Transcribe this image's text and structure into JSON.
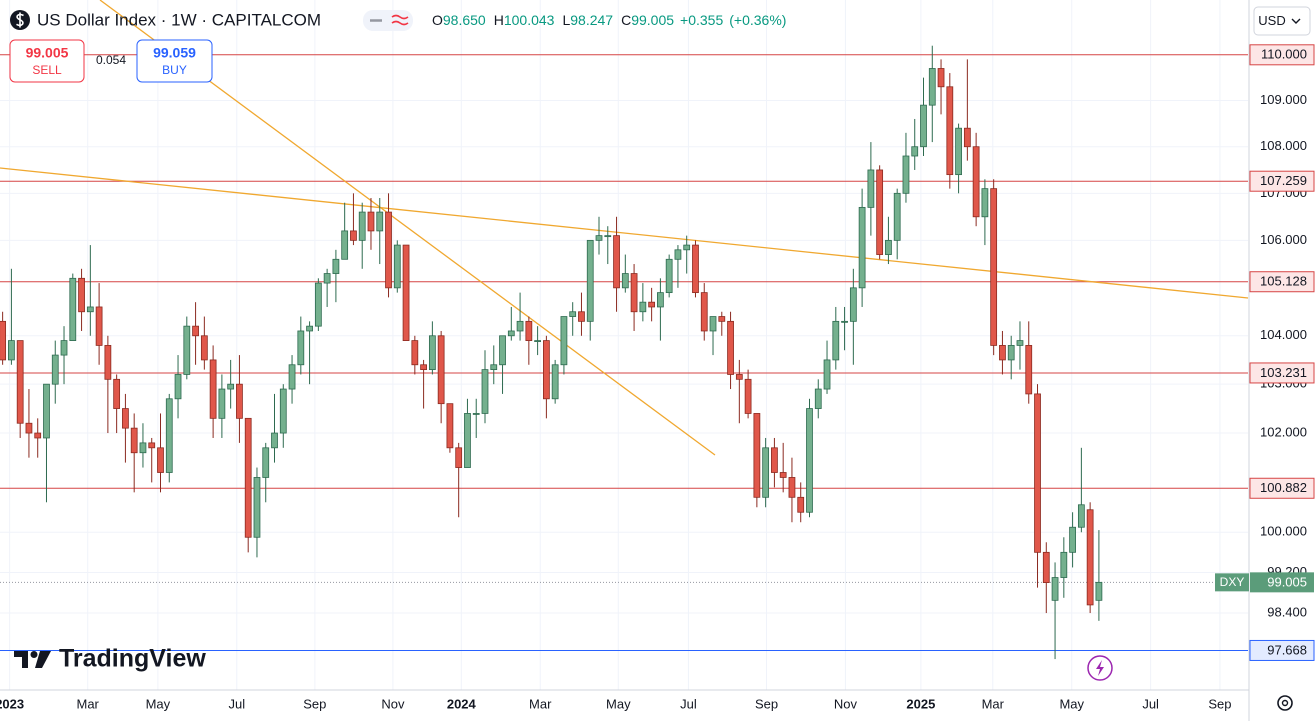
{
  "header": {
    "symbol": "US Dollar Index · 1W · CAPITALCOM",
    "legend": [
      {
        "label": "O",
        "value": "98.650"
      },
      {
        "label": "H",
        "value": "100.043"
      },
      {
        "label": "L",
        "value": "98.247"
      },
      {
        "label": "C",
        "value": "99.005"
      }
    ],
    "change": "+0.355",
    "change_pct": "(+0.36%)",
    "sell": {
      "price": "99.005",
      "label": "SELL"
    },
    "spread": "0.054",
    "buy": {
      "price": "99.059",
      "label": "BUY"
    },
    "currency": "USD",
    "logo": "TradingView"
  },
  "chart_data": {
    "type": "candlestick",
    "log_scale": true,
    "grid": true,
    "up_color": "#74b08e",
    "up_border": "#2d6a4f",
    "down_color": "#e0574a",
    "down_border": "#8b2a20",
    "xlim": [
      -0.3,
      142
    ],
    "ylim": [
      96.9,
      111.21
    ],
    "xticks": [
      {
        "value": 0.8,
        "label": "2023"
      },
      {
        "value": 9.7,
        "label": "Mar"
      },
      {
        "value": 17.7,
        "label": "May"
      },
      {
        "value": 26.7,
        "label": "Jul"
      },
      {
        "value": 35.6,
        "label": "Sep"
      },
      {
        "value": 44.5,
        "label": "Nov"
      },
      {
        "value": 52.3,
        "label": "2024"
      },
      {
        "value": 61.3,
        "label": "Mar"
      },
      {
        "value": 70.2,
        "label": "May"
      },
      {
        "value": 78.2,
        "label": "Jul"
      },
      {
        "value": 87.1,
        "label": "Sep"
      },
      {
        "value": 96.1,
        "label": "Nov"
      },
      {
        "value": 104.7,
        "label": "2025"
      },
      {
        "value": 112.9,
        "label": "Mar"
      },
      {
        "value": 121.9,
        "label": "May"
      },
      {
        "value": 130.9,
        "label": "Jul"
      },
      {
        "value": 138.8,
        "label": "Sep"
      }
    ],
    "yticks": [
      {
        "value": 109,
        "label": "109.000"
      },
      {
        "value": 108,
        "label": "108.000"
      },
      {
        "value": 107,
        "label": "107.000"
      },
      {
        "value": 106,
        "label": "106.000"
      },
      {
        "value": 104,
        "label": "104.000"
      },
      {
        "value": 103,
        "label": "103.000"
      },
      {
        "value": 102,
        "label": "102.000"
      },
      {
        "value": 100,
        "label": "100.000"
      },
      {
        "value": 99.2,
        "label": "99.200"
      },
      {
        "value": 98.4,
        "label": "98.400"
      }
    ],
    "levels": [
      {
        "value": 110,
        "label": "110.000",
        "color": "#d64545"
      },
      {
        "value": 107.259,
        "label": "107.259",
        "color": "#d64545"
      },
      {
        "value": 105.128,
        "label": "105.128",
        "color": "#d64545"
      },
      {
        "value": 103.231,
        "label": "103.231",
        "color": "#d64545"
      },
      {
        "value": 100.882,
        "label": "100.882",
        "color": "#d64545"
      },
      {
        "value": 97.668,
        "label": "97.668",
        "color": "#2962ff"
      }
    ],
    "last_price": {
      "value": 99.005,
      "label": "99.005",
      "tag": "DXY",
      "color": "#5b9c7a"
    },
    "ohlc": [
      [
        104.3,
        104.5,
        103.4,
        103.5
      ],
      [
        103.5,
        105.4,
        103.4,
        103.9
      ],
      [
        103.9,
        103.9,
        101.9,
        102.2
      ],
      [
        102.2,
        102.9,
        101.5,
        102.0
      ],
      [
        102.0,
        102.3,
        101.5,
        101.9
      ],
      [
        101.9,
        103.0,
        100.6,
        103.0
      ],
      [
        103.0,
        103.9,
        102.6,
        103.6
      ],
      [
        103.6,
        104.2,
        103.0,
        103.9
      ],
      [
        103.9,
        105.3,
        103.9,
        105.2
      ],
      [
        105.2,
        105.4,
        104.1,
        104.5
      ],
      [
        104.5,
        105.9,
        104.0,
        104.6
      ],
      [
        104.6,
        105.1,
        103.4,
        103.8
      ],
      [
        103.8,
        104.0,
        102.0,
        103.1
      ],
      [
        103.1,
        103.2,
        102.0,
        102.5
      ],
      [
        102.5,
        102.8,
        101.4,
        102.1
      ],
      [
        102.1,
        102.4,
        100.8,
        101.6
      ],
      [
        101.6,
        102.2,
        101.3,
        101.8
      ],
      [
        101.8,
        101.9,
        101.0,
        101.7
      ],
      [
        101.7,
        102.4,
        100.8,
        101.2
      ],
      [
        101.2,
        102.8,
        101.0,
        102.7
      ],
      [
        102.7,
        103.6,
        102.3,
        103.2
      ],
      [
        103.2,
        104.4,
        103.1,
        104.2
      ],
      [
        104.2,
        104.7,
        103.4,
        104.0
      ],
      [
        104.0,
        104.4,
        103.3,
        103.5
      ],
      [
        103.5,
        103.8,
        101.9,
        102.3
      ],
      [
        102.3,
        103.2,
        101.9,
        102.9
      ],
      [
        102.9,
        103.5,
        102.5,
        103.0
      ],
      [
        103.0,
        103.6,
        101.8,
        102.3
      ],
      [
        102.3,
        102.3,
        99.6,
        99.9
      ],
      [
        99.9,
        101.3,
        99.5,
        101.1
      ],
      [
        101.1,
        101.8,
        100.6,
        101.7
      ],
      [
        101.7,
        102.8,
        101.4,
        102.0
      ],
      [
        102.0,
        103.0,
        101.7,
        102.9
      ],
      [
        102.9,
        103.6,
        102.6,
        103.4
      ],
      [
        103.4,
        104.4,
        103.2,
        104.1
      ],
      [
        104.1,
        104.3,
        103.0,
        104.2
      ],
      [
        104.2,
        105.2,
        104.1,
        105.1
      ],
      [
        105.1,
        105.4,
        104.6,
        105.3
      ],
      [
        105.3,
        105.8,
        104.7,
        105.6
      ],
      [
        105.6,
        106.8,
        105.6,
        106.2
      ],
      [
        106.2,
        107.0,
        105.9,
        106.0
      ],
      [
        106.0,
        106.8,
        105.4,
        106.6
      ],
      [
        106.6,
        106.9,
        105.8,
        106.2
      ],
      [
        106.2,
        106.9,
        105.5,
        106.6
      ],
      [
        106.6,
        107.0,
        104.8,
        105.0
      ],
      [
        105.0,
        106.0,
        104.9,
        105.9
      ],
      [
        105.9,
        105.9,
        103.9,
        103.9
      ],
      [
        103.9,
        104.0,
        103.2,
        103.4
      ],
      [
        103.4,
        103.5,
        102.5,
        103.3
      ],
      [
        103.3,
        104.3,
        103.2,
        104.0
      ],
      [
        104.0,
        104.1,
        102.2,
        102.6
      ],
      [
        102.6,
        102.6,
        101.6,
        101.7
      ],
      [
        101.7,
        101.8,
        100.3,
        101.3
      ],
      [
        101.3,
        102.7,
        101.3,
        102.4
      ],
      [
        102.4,
        102.7,
        101.9,
        102.4
      ],
      [
        102.4,
        103.7,
        102.2,
        103.3
      ],
      [
        103.3,
        103.8,
        103.0,
        103.4
      ],
      [
        103.4,
        104.0,
        102.8,
        104.0
      ],
      [
        104.0,
        104.6,
        103.9,
        104.1
      ],
      [
        104.1,
        104.9,
        103.9,
        104.3
      ],
      [
        104.3,
        104.4,
        103.4,
        103.9
      ],
      [
        103.9,
        104.2,
        103.6,
        103.9
      ],
      [
        103.9,
        104.0,
        102.3,
        102.7
      ],
      [
        102.7,
        103.5,
        102.6,
        103.4
      ],
      [
        103.4,
        104.4,
        103.2,
        104.4
      ],
      [
        104.4,
        104.7,
        104.0,
        104.5
      ],
      [
        104.5,
        104.9,
        104.0,
        104.3
      ],
      [
        104.3,
        106.0,
        103.9,
        106.0
      ],
      [
        106.0,
        106.5,
        105.7,
        106.1
      ],
      [
        106.1,
        106.3,
        105.5,
        106.1
      ],
      [
        106.1,
        106.5,
        104.5,
        105.0
      ],
      [
        105.0,
        105.7,
        104.9,
        105.3
      ],
      [
        105.3,
        105.5,
        104.1,
        104.5
      ],
      [
        104.5,
        105.1,
        104.3,
        104.7
      ],
      [
        104.7,
        105.0,
        104.3,
        104.6
      ],
      [
        104.6,
        105.2,
        103.9,
        104.9
      ],
      [
        104.9,
        105.7,
        104.8,
        105.6
      ],
      [
        105.6,
        105.9,
        105.0,
        105.8
      ],
      [
        105.8,
        106.1,
        105.3,
        105.9
      ],
      [
        105.9,
        106.0,
        104.8,
        104.9
      ],
      [
        104.9,
        105.1,
        103.9,
        104.1
      ],
      [
        104.1,
        104.4,
        103.6,
        104.4
      ],
      [
        104.4,
        104.5,
        104.0,
        104.3
      ],
      [
        104.3,
        104.5,
        102.9,
        103.2
      ],
      [
        103.2,
        103.5,
        102.2,
        103.1
      ],
      [
        103.1,
        103.3,
        102.3,
        102.4
      ],
      [
        102.4,
        102.4,
        100.5,
        100.7
      ],
      [
        100.7,
        101.9,
        100.5,
        101.7
      ],
      [
        101.7,
        101.9,
        100.9,
        101.2
      ],
      [
        101.2,
        101.8,
        100.8,
        101.1
      ],
      [
        101.1,
        101.5,
        100.2,
        100.7
      ],
      [
        100.7,
        101.0,
        100.2,
        100.4
      ],
      [
        100.4,
        102.7,
        100.3,
        102.5
      ],
      [
        102.5,
        103.1,
        102.3,
        102.9
      ],
      [
        102.9,
        103.9,
        102.8,
        103.5
      ],
      [
        103.5,
        104.6,
        103.3,
        104.3
      ],
      [
        104.3,
        104.6,
        103.7,
        104.3
      ],
      [
        104.3,
        105.4,
        103.4,
        105.0
      ],
      [
        105.0,
        107.1,
        104.6,
        106.7
      ],
      [
        106.7,
        108.1,
        106.1,
        107.5
      ],
      [
        107.5,
        107.6,
        105.6,
        105.7
      ],
      [
        105.7,
        106.5,
        105.5,
        106.0
      ],
      [
        106.0,
        107.1,
        105.6,
        107.0
      ],
      [
        107.0,
        108.3,
        106.8,
        107.8
      ],
      [
        107.8,
        108.6,
        107.5,
        108.0
      ],
      [
        108.0,
        109.5,
        107.8,
        108.9
      ],
      [
        108.9,
        110.2,
        108.1,
        109.7
      ],
      [
        109.7,
        109.9,
        108.7,
        109.3
      ],
      [
        109.3,
        109.6,
        107.1,
        107.4
      ],
      [
        107.4,
        108.5,
        107.0,
        108.4
      ],
      [
        108.4,
        109.9,
        107.7,
        108.0
      ],
      [
        108.0,
        108.3,
        106.3,
        106.5
      ],
      [
        106.5,
        107.3,
        105.9,
        107.1
      ],
      [
        107.1,
        107.3,
        103.6,
        103.8
      ],
      [
        103.8,
        104.1,
        103.2,
        103.5
      ],
      [
        103.5,
        104.0,
        103.1,
        103.8
      ],
      [
        103.8,
        104.3,
        103.3,
        103.9
      ],
      [
        103.8,
        104.3,
        102.6,
        102.8
      ],
      [
        102.8,
        103.0,
        98.9,
        99.6
      ],
      [
        99.6,
        99.8,
        98.4,
        99.0
      ],
      [
        98.65,
        99.4,
        97.5,
        99.1
      ],
      [
        99.1,
        99.9,
        98.7,
        99.6
      ],
      [
        99.6,
        100.4,
        99.3,
        100.1
      ],
      [
        100.1,
        101.7,
        100.0,
        100.55
      ],
      [
        100.45,
        100.6,
        98.4,
        98.56
      ],
      [
        98.65,
        100.043,
        98.247,
        99.005
      ]
    ]
  }
}
